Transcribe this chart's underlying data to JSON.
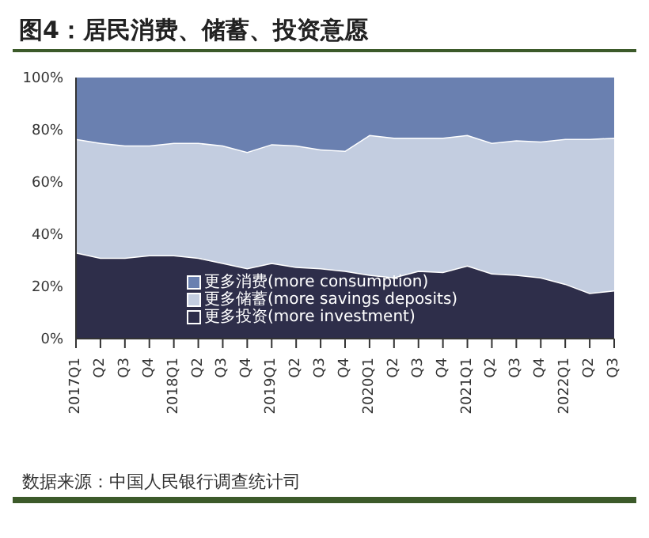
{
  "chart_data": {
    "type": "area",
    "stacked": true,
    "title": "图4：居民消费、储蓄、投资意愿",
    "categories": [
      "2017Q1",
      "Q2",
      "Q3",
      "Q4",
      "2018Q1",
      "Q2",
      "Q3",
      "Q4",
      "2019Q1",
      "Q2",
      "Q3",
      "Q4",
      "2020Q1",
      "Q2",
      "Q3",
      "Q4",
      "2021Q1",
      "Q2",
      "Q3",
      "Q4",
      "2022Q1",
      "Q2",
      "Q3"
    ],
    "series": [
      {
        "name": "更多投资(more investment)",
        "color": "#2e2e4a",
        "values": [
          33,
          31,
          31,
          32,
          32,
          31,
          29,
          27,
          29,
          27.5,
          27,
          26,
          24.5,
          23.5,
          26,
          25.5,
          28,
          25,
          24.5,
          23.5,
          21,
          17.5,
          18.5
        ]
      },
      {
        "name": "更多储蓄(more savings deposits)",
        "color": "#c3cde0",
        "values": [
          43.5,
          44,
          43,
          42,
          43,
          44,
          45,
          44.5,
          45.5,
          46.5,
          45.5,
          46,
          53.5,
          53.5,
          51,
          51.5,
          50,
          50,
          51.5,
          52,
          55.5,
          59,
          58.5
        ]
      },
      {
        "name": "更多消费(more consumption)",
        "color": "#6a80b0",
        "values": [
          23.5,
          25,
          26,
          26,
          25,
          25,
          26,
          28.5,
          25.5,
          26,
          27.5,
          28,
          22,
          23,
          23,
          23,
          22,
          25,
          24,
          24.5,
          23.5,
          23.5,
          23
        ]
      }
    ],
    "ylim": [
      0,
      100
    ],
    "yticks": [
      {
        "value": 0,
        "label": "0%"
      },
      {
        "value": 20,
        "label": "20%"
      },
      {
        "value": 40,
        "label": "40%"
      },
      {
        "value": 60,
        "label": "60%"
      },
      {
        "value": 80,
        "label": "80%"
      },
      {
        "value": 100,
        "label": "100%"
      }
    ],
    "grid": false,
    "legend": "bottom left",
    "annotations": [
      "数据来源：中国人民银行调查统计司"
    ]
  }
}
